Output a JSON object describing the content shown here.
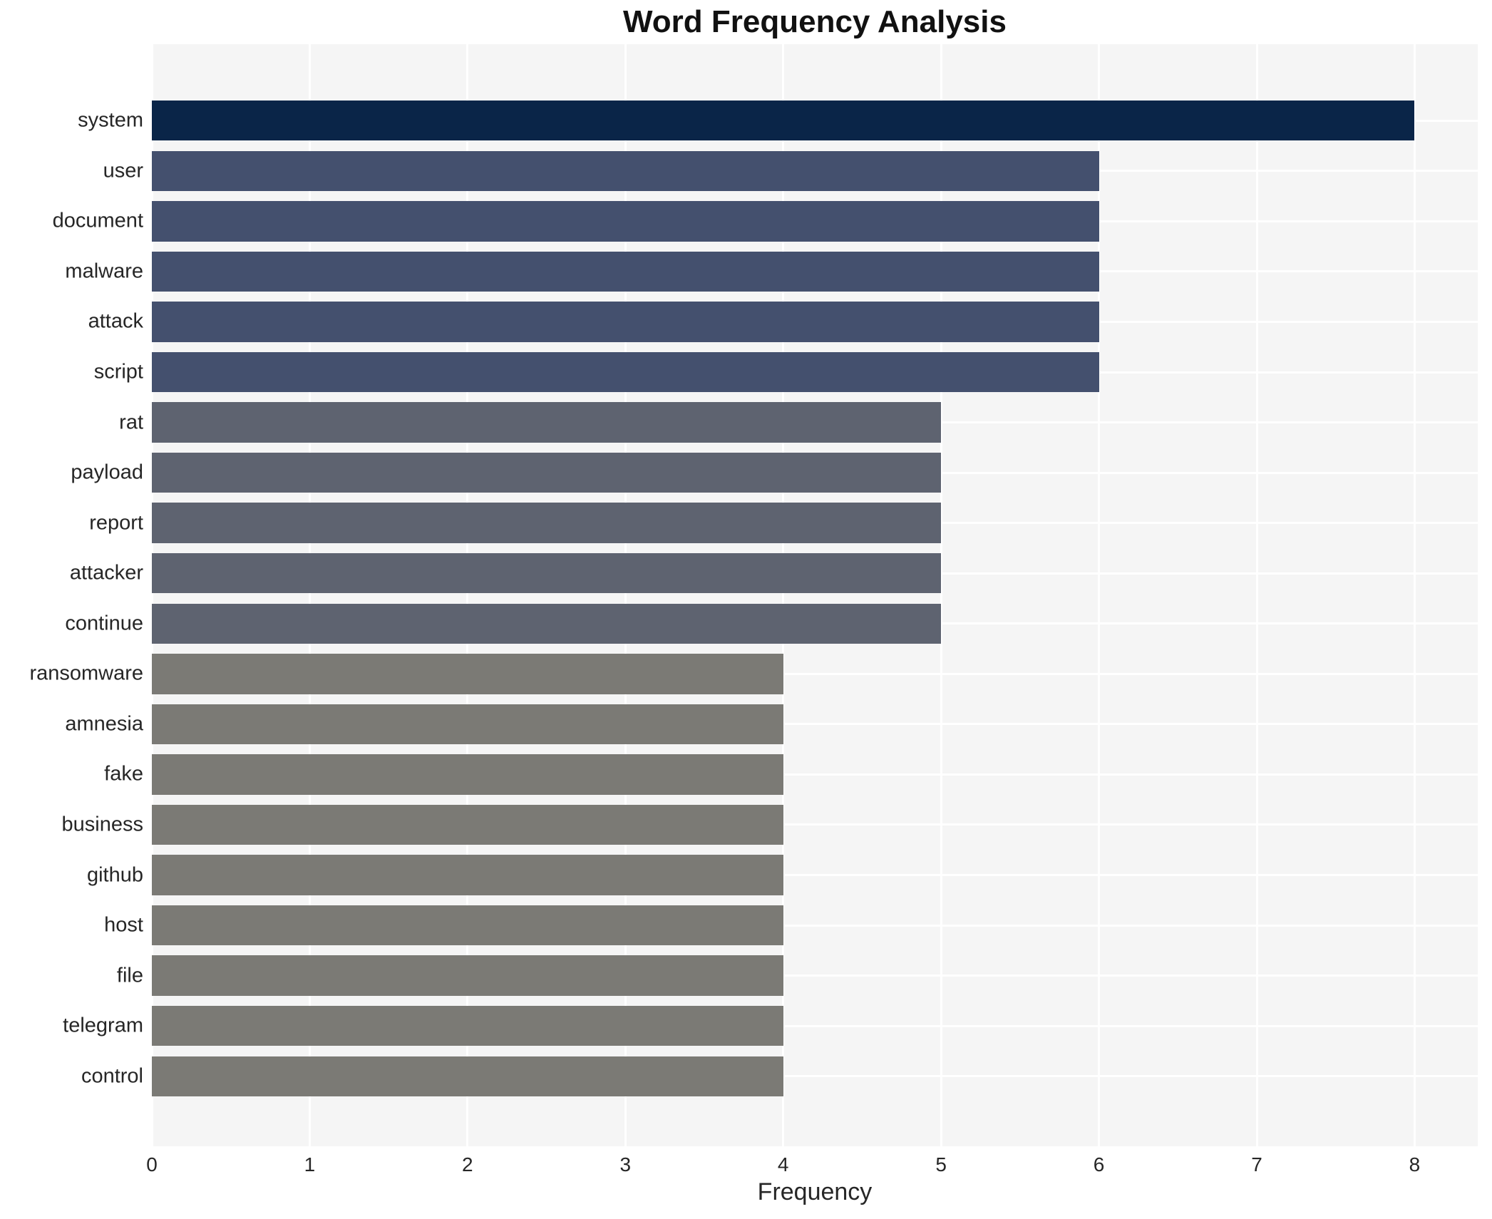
{
  "title": "Word Frequency Analysis",
  "chart_data": {
    "type": "bar",
    "orientation": "horizontal",
    "title": "Word Frequency Analysis",
    "xlabel": "Frequency",
    "ylabel": "",
    "categories": [
      "system",
      "user",
      "document",
      "malware",
      "attack",
      "script",
      "rat",
      "payload",
      "report",
      "attacker",
      "continue",
      "ransomware",
      "amnesia",
      "fake",
      "business",
      "github",
      "host",
      "file",
      "telegram",
      "control"
    ],
    "values": [
      8,
      6,
      6,
      6,
      6,
      6,
      5,
      5,
      5,
      5,
      5,
      4,
      4,
      4,
      4,
      4,
      4,
      4,
      4,
      4
    ],
    "xticks": [
      0,
      1,
      2,
      3,
      4,
      5,
      6,
      7,
      8
    ],
    "xlim": [
      0,
      8.4
    ],
    "grid": true,
    "legend_position": "none",
    "colors": {
      "bar_by_value": {
        "8": "#0a2548",
        "6": "#44506e",
        "5": "#5e6370",
        "4": "#7b7a75"
      },
      "plot_background": "#f5f5f5",
      "grid_color": "#ffffff",
      "text_color": "#262626",
      "title_color": "#111111"
    }
  }
}
